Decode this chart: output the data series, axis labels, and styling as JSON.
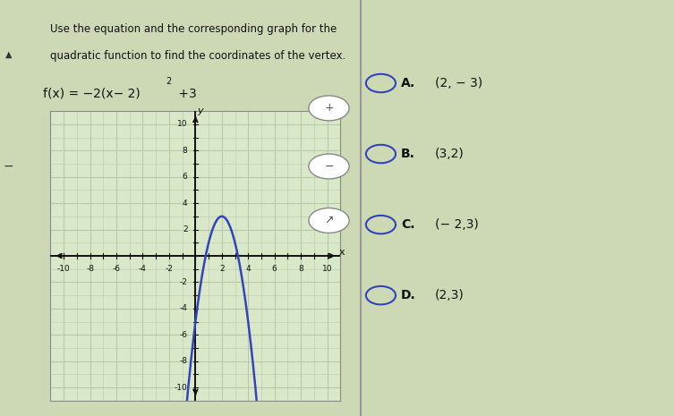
{
  "title_line1": "Use the equation and the corresponding graph for the",
  "title_line2": "quadratic function to find the coordinates of the vertex.",
  "equation_text": "f(x) = −2(x– 2)",
  "choices_labels": [
    "A.",
    "B.",
    "C.",
    "D."
  ],
  "choices_coords": [
    "(2, − 3)",
    "(3,2)",
    "(− 2,3)",
    "(2,3)"
  ],
  "bg_color": "#cdd9b5",
  "grid_bg": "#d8e8c8",
  "grid_line_color": "#b8c8a8",
  "axis_color": "#111111",
  "curve_color": "#3344bb",
  "right_bg": "#dde8f5",
  "xmin": -10,
  "xmax": 10,
  "ymin": -10,
  "ymax": 10,
  "tick_step": 2,
  "circle_color": "#3344bb",
  "label_bold_color": "#111111",
  "divider_color": "#999999"
}
